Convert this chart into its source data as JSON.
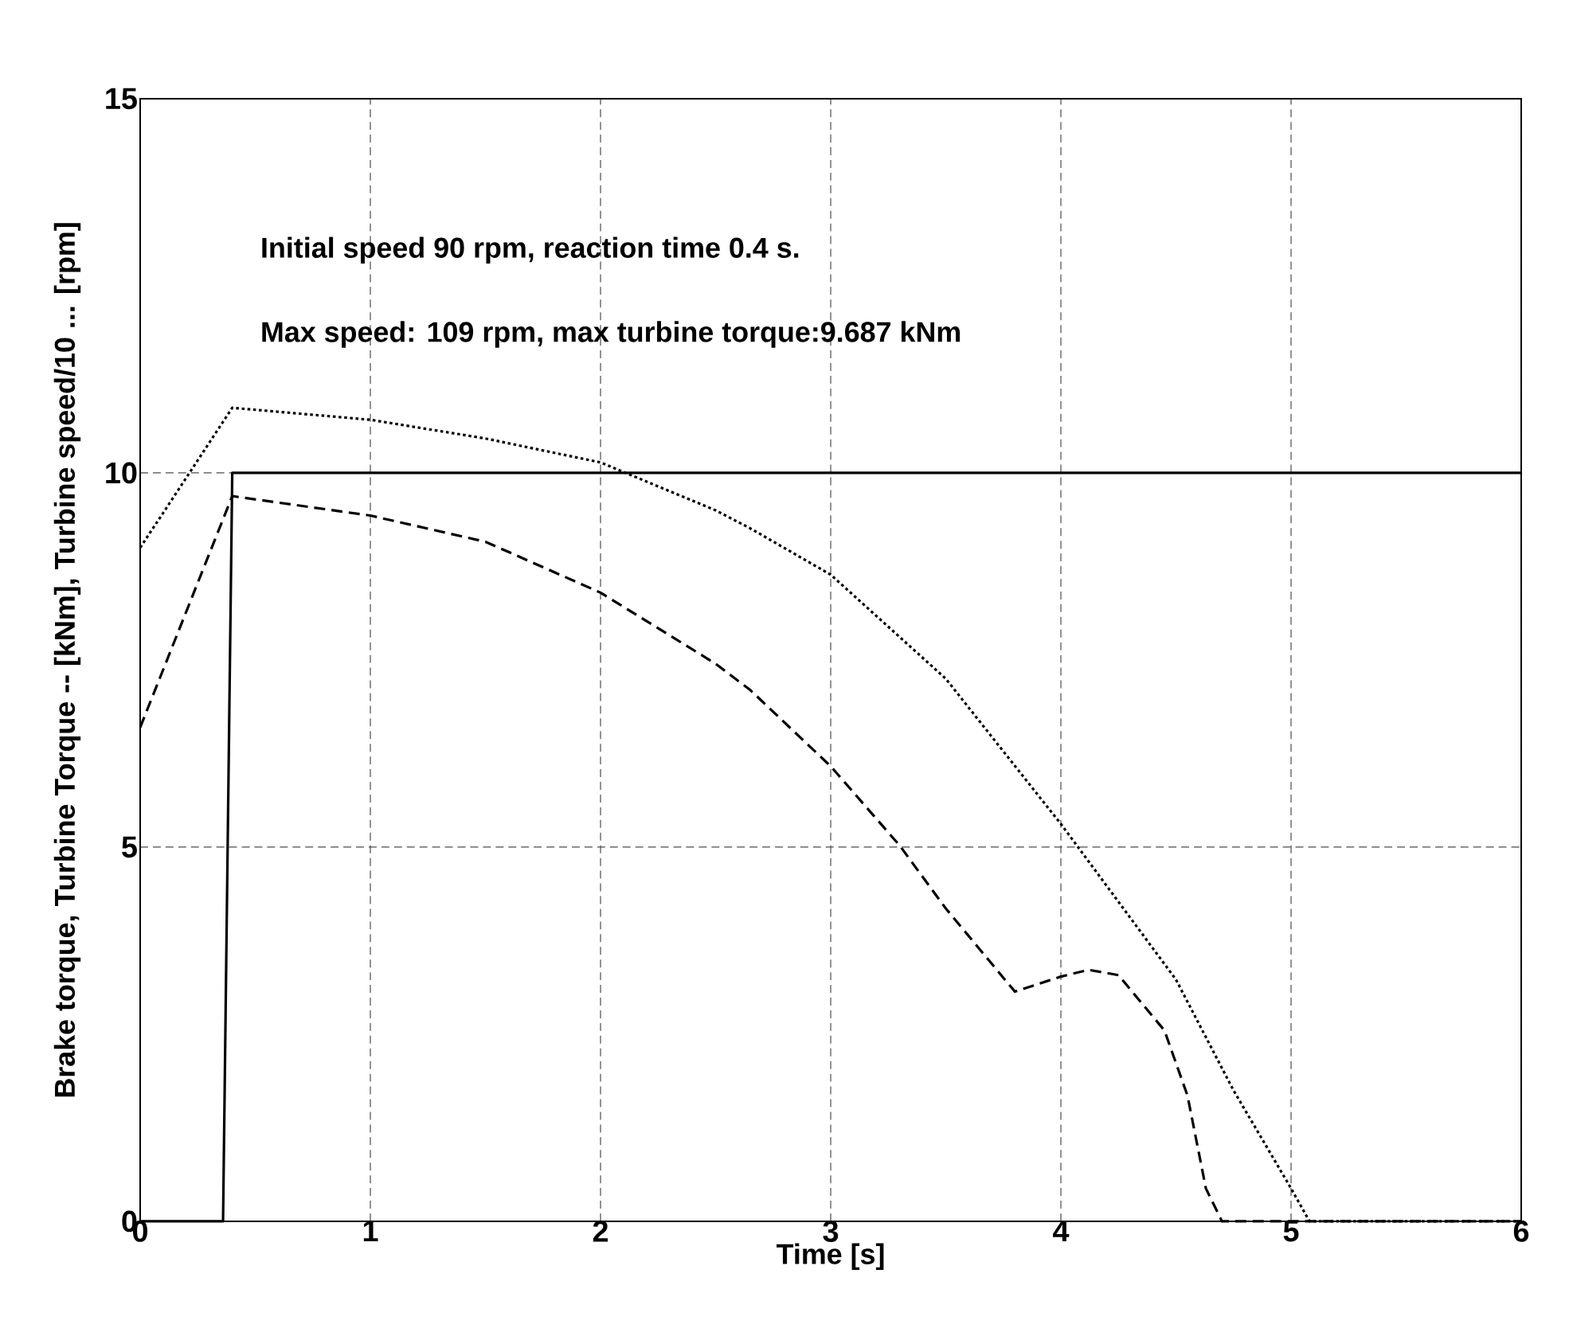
{
  "chart_data": {
    "type": "line",
    "xlabel": "Time [s]",
    "ylabel": "Brake torque, Turbine Torque -- [kNm], Turbine speed/10 ... [rpm]",
    "annotations": [
      "Initial speed 90 rpm, reaction time 0.4 s.",
      "Max speed: 109 rpm, max turbine torque:9.687 kNm"
    ],
    "xlim": [
      0,
      6
    ],
    "ylim": [
      0,
      15
    ],
    "xticks": [
      0,
      1,
      2,
      3,
      4,
      5,
      6
    ],
    "yticks": [
      0,
      5,
      10,
      15
    ],
    "grid": true,
    "marker": "none",
    "series": [
      {
        "color": "#000000",
        "line_style": "solid",
        "x": [
          0,
          0.36,
          0.4,
          6
        ],
        "values": [
          0,
          0,
          10,
          10
        ]
      },
      {
        "color": "#000000",
        "line_style": "dashed",
        "x": [
          0,
          0.4,
          1,
          1.5,
          2,
          2.5,
          2.65,
          3,
          3.3,
          3.5,
          3.8,
          4,
          4.12,
          4.25,
          4.45,
          4.55,
          4.63,
          4.7,
          6
        ],
        "values": [
          6.6,
          9.69,
          9.43,
          9.08,
          8.4,
          7.45,
          7.1,
          6.08,
          5.02,
          4.18,
          3.07,
          3.27,
          3.36,
          3.29,
          2.55,
          1.68,
          0.44,
          0,
          0
        ]
      },
      {
        "color": "#000000",
        "line_style": "dotted",
        "x": [
          0,
          0.4,
          1,
          1.5,
          2,
          2.5,
          2.65,
          3,
          3.5,
          4,
          4.5,
          4.75,
          5,
          5.08,
          6
        ],
        "values": [
          9.0,
          10.87,
          10.71,
          10.46,
          10.14,
          9.5,
          9.26,
          8.64,
          7.25,
          5.31,
          3.23,
          1.75,
          0.44,
          0,
          0
        ]
      }
    ]
  }
}
